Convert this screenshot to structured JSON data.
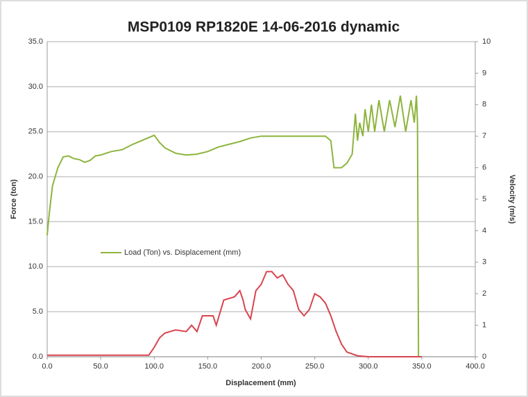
{
  "chart_data": {
    "type": "line",
    "title": "MSP0109 RP1820E 14-06-2016 dynamic",
    "x_label": "Displacement (mm)",
    "y_label": "Force (ton)",
    "y2_label": "Velocity (m/s)",
    "grid": true,
    "legend": "inside",
    "xlim": [
      0,
      400
    ],
    "xticks": [
      {
        "value": 0,
        "label": "0.0"
      },
      {
        "value": 50,
        "label": "50.0"
      },
      {
        "value": 100,
        "label": "100.0"
      },
      {
        "value": 150,
        "label": "150.0"
      },
      {
        "value": 200,
        "label": "200.0"
      },
      {
        "value": 250,
        "label": "250.0"
      },
      {
        "value": 300,
        "label": "300.0"
      },
      {
        "value": 350,
        "label": "350.0"
      },
      {
        "value": 400,
        "label": "400.0"
      }
    ],
    "ylim": [
      0,
      35
    ],
    "yticks": [
      {
        "value": 0,
        "label": "0.0"
      },
      {
        "value": 5,
        "label": "5.0"
      },
      {
        "value": 10,
        "label": "10.0"
      },
      {
        "value": 15,
        "label": "15.0"
      },
      {
        "value": 20,
        "label": "20.0"
      },
      {
        "value": 25,
        "label": "25.0"
      },
      {
        "value": 30,
        "label": "30.0"
      },
      {
        "value": 35,
        "label": "35.0"
      }
    ],
    "y2lim": [
      0,
      10
    ],
    "y2ticks": [
      0,
      1,
      2,
      3,
      4,
      5,
      6,
      7,
      8,
      9,
      10
    ],
    "series": [
      {
        "name": "Load (Ton) vs. Displacement (mm)",
        "color": "#8cb43c",
        "x": [
          0,
          2,
          5,
          10,
          15,
          20,
          25,
          30,
          35,
          40,
          45,
          50,
          55,
          60,
          70,
          80,
          90,
          100,
          105,
          110,
          120,
          130,
          140,
          150,
          160,
          170,
          180,
          190,
          200,
          220,
          240,
          260,
          265,
          268,
          275,
          280,
          285,
          288,
          290,
          292,
          295,
          297,
          300,
          303,
          306,
          310,
          315,
          320,
          325,
          330,
          335,
          340,
          343,
          345,
          346,
          347
        ],
        "values": [
          13.5,
          16,
          19,
          21,
          22.2,
          22.3,
          22,
          21.9,
          21.6,
          21.8,
          22.3,
          22.4,
          22.6,
          22.8,
          23,
          23.6,
          24.1,
          24.6,
          23.8,
          23.2,
          22.6,
          22.4,
          22.5,
          22.8,
          23.3,
          23.6,
          23.9,
          24.3,
          24.5,
          24.5,
          24.5,
          24.5,
          24,
          21,
          21,
          21.5,
          22.5,
          27,
          24,
          26,
          24.5,
          27.5,
          25,
          28,
          25,
          28.5,
          25,
          28.5,
          25.5,
          29,
          25,
          28.5,
          26,
          29,
          26,
          0
        ]
      },
      {
        "color": "#d9434e",
        "axis": "y2",
        "x": [
          0,
          50,
          95,
          100,
          105,
          110,
          120,
          130,
          135,
          140,
          145,
          155,
          158,
          165,
          175,
          180,
          183,
          185,
          190,
          195,
          200,
          205,
          210,
          215,
          220,
          225,
          230,
          235,
          240,
          245,
          250,
          255,
          260,
          265,
          270,
          275,
          280,
          290,
          300,
          350
        ],
        "values": [
          0.05,
          0.05,
          0.05,
          0.3,
          0.6,
          0.75,
          0.85,
          0.8,
          1.0,
          0.8,
          1.3,
          1.3,
          1.0,
          1.8,
          1.9,
          2.1,
          1.8,
          1.5,
          1.2,
          2.1,
          2.3,
          2.7,
          2.7,
          2.5,
          2.6,
          2.3,
          2.1,
          1.5,
          1.3,
          1.5,
          2.0,
          1.9,
          1.7,
          1.3,
          0.8,
          0.4,
          0.15,
          0.03,
          0,
          0
        ]
      }
    ]
  }
}
